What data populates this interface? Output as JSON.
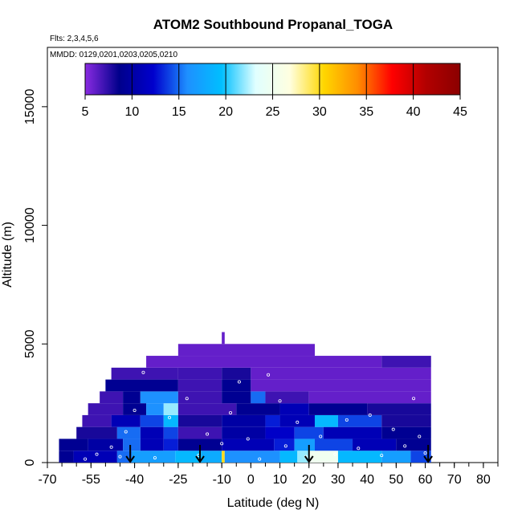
{
  "chart_data": {
    "type": "heatmap",
    "title": "ATOM2 Southbound Propanal_TOGA",
    "subtitle": "Flts: 2,3,4,5,6",
    "annotation": "MMDD: 0129,0201,0203,0205,0210",
    "xlabel": "Latitude (deg N)",
    "ylabel": "Altitude (m)",
    "xlim": [
      -70,
      85
    ],
    "ylim": [
      0,
      17500
    ],
    "x_ticks": [
      -70,
      -55,
      -40,
      -25,
      -10,
      0,
      10,
      20,
      30,
      40,
      50,
      60,
      70,
      80
    ],
    "x_tick_labels": [
      "-70",
      "-55",
      "-40",
      "-25",
      "-10",
      "0",
      "10",
      "20",
      "30",
      "40",
      "50",
      "60",
      "70",
      "80"
    ],
    "y_ticks": [
      0,
      5000,
      10000,
      15000
    ],
    "y_tick_labels": [
      "0",
      "5000",
      "10000",
      "15000"
    ],
    "colorbar": {
      "min": 5,
      "max": 45,
      "ticks": [
        5,
        10,
        15,
        20,
        25,
        30,
        35,
        40,
        45
      ],
      "tick_labels": [
        "5",
        "10",
        "15",
        "20",
        "25",
        "30",
        "35",
        "40",
        "45"
      ],
      "colors": [
        "#8a2be2",
        "#00008b",
        "#0000cd",
        "#1e90ff",
        "#00bfff",
        "#e0ffff",
        "#ffffe0",
        "#ffd700",
        "#ff8c00",
        "#ff0000",
        "#b20000",
        "#8b0000"
      ]
    },
    "profile_arrows_lat": [
      -41.5,
      -17.5,
      20,
      61
    ],
    "cells": [
      {
        "lat": [
          -66,
          -61
        ],
        "alt": [
          0,
          500
        ],
        "value": 9
      },
      {
        "lat": [
          -61,
          -46
        ],
        "alt": [
          0,
          500
        ],
        "value": 11
      },
      {
        "lat": [
          -46,
          -41
        ],
        "alt": [
          0,
          500
        ],
        "value": 15
      },
      {
        "lat": [
          -41,
          -26
        ],
        "alt": [
          0,
          500
        ],
        "value": 17
      },
      {
        "lat": [
          -26,
          -17
        ],
        "alt": [
          0,
          500
        ],
        "value": 19
      },
      {
        "lat": [
          -17,
          -10
        ],
        "alt": [
          0,
          500
        ],
        "value": 18
      },
      {
        "lat": [
          -10,
          -9
        ],
        "alt": [
          0,
          500
        ],
        "value": 30
      },
      {
        "lat": [
          -9,
          10
        ],
        "alt": [
          0,
          500
        ],
        "value": 16
      },
      {
        "lat": [
          10,
          16
        ],
        "alt": [
          0,
          500
        ],
        "value": 19
      },
      {
        "lat": [
          16,
          20
        ],
        "alt": [
          0,
          500
        ],
        "value": 22
      },
      {
        "lat": [
          20,
          30
        ],
        "alt": [
          0,
          500
        ],
        "value": 25
      },
      {
        "lat": [
          30,
          45
        ],
        "alt": [
          0,
          500
        ],
        "value": 19
      },
      {
        "lat": [
          45,
          55
        ],
        "alt": [
          0,
          500
        ],
        "value": 17
      },
      {
        "lat": [
          55,
          62
        ],
        "alt": [
          0,
          500
        ],
        "value": 14
      },
      {
        "lat": [
          -66,
          -56
        ],
        "alt": [
          500,
          1000
        ],
        "value": 9
      },
      {
        "lat": [
          -56,
          -44
        ],
        "alt": [
          500,
          1000
        ],
        "value": 10
      },
      {
        "lat": [
          -44,
          -38
        ],
        "alt": [
          500,
          1000
        ],
        "value": 15
      },
      {
        "lat": [
          -38,
          -30
        ],
        "alt": [
          500,
          1000
        ],
        "value": 11
      },
      {
        "lat": [
          -30,
          -25
        ],
        "alt": [
          500,
          1000
        ],
        "value": 13
      },
      {
        "lat": [
          -25,
          -10
        ],
        "alt": [
          500,
          1000
        ],
        "value": 9
      },
      {
        "lat": [
          -10,
          8
        ],
        "alt": [
          500,
          1000
        ],
        "value": 11
      },
      {
        "lat": [
          8,
          15
        ],
        "alt": [
          500,
          1000
        ],
        "value": 13
      },
      {
        "lat": [
          15,
          22
        ],
        "alt": [
          500,
          1000
        ],
        "value": 17
      },
      {
        "lat": [
          22,
          35
        ],
        "alt": [
          500,
          1000
        ],
        "value": 14
      },
      {
        "lat": [
          35,
          50
        ],
        "alt": [
          500,
          1000
        ],
        "value": 11
      },
      {
        "lat": [
          50,
          62
        ],
        "alt": [
          500,
          1000
        ],
        "value": 9
      },
      {
        "lat": [
          -60,
          -46
        ],
        "alt": [
          1000,
          1500
        ],
        "value": 8
      },
      {
        "lat": [
          -46,
          -38
        ],
        "alt": [
          1000,
          1500
        ],
        "value": 15
      },
      {
        "lat": [
          -38,
          -30
        ],
        "alt": [
          1000,
          1500
        ],
        "value": 11
      },
      {
        "lat": [
          -30,
          -25
        ],
        "alt": [
          1000,
          1500
        ],
        "value": 14
      },
      {
        "lat": [
          -25,
          -10
        ],
        "alt": [
          1000,
          1500
        ],
        "value": 7
      },
      {
        "lat": [
          -10,
          5
        ],
        "alt": [
          1000,
          1500
        ],
        "value": 10
      },
      {
        "lat": [
          5,
          15
        ],
        "alt": [
          1000,
          1500
        ],
        "value": 12
      },
      {
        "lat": [
          15,
          25
        ],
        "alt": [
          1000,
          1500
        ],
        "value": 14
      },
      {
        "lat": [
          25,
          45
        ],
        "alt": [
          1000,
          1500
        ],
        "value": 11
      },
      {
        "lat": [
          45,
          62
        ],
        "alt": [
          1000,
          1500
        ],
        "value": 9
      },
      {
        "lat": [
          -58,
          -48
        ],
        "alt": [
          1500,
          2000
        ],
        "value": 7
      },
      {
        "lat": [
          -48,
          -38
        ],
        "alt": [
          1500,
          2000
        ],
        "value": 11
      },
      {
        "lat": [
          -38,
          -30
        ],
        "alt": [
          1500,
          2000
        ],
        "value": 14
      },
      {
        "lat": [
          -30,
          -25
        ],
        "alt": [
          1500,
          2000
        ],
        "value": 19
      },
      {
        "lat": [
          -25,
          -10
        ],
        "alt": [
          1500,
          2000
        ],
        "value": 8
      },
      {
        "lat": [
          -10,
          5
        ],
        "alt": [
          1500,
          2000
        ],
        "value": 10
      },
      {
        "lat": [
          5,
          10
        ],
        "alt": [
          1500,
          2000
        ],
        "value": 13
      },
      {
        "lat": [
          10,
          22
        ],
        "alt": [
          1500,
          2000
        ],
        "value": 11
      },
      {
        "lat": [
          22,
          30
        ],
        "alt": [
          1500,
          2000
        ],
        "value": 19
      },
      {
        "lat": [
          30,
          45
        ],
        "alt": [
          1500,
          2000
        ],
        "value": 14
      },
      {
        "lat": [
          45,
          62
        ],
        "alt": [
          1500,
          2000
        ],
        "value": 8
      },
      {
        "lat": [
          -56,
          -44
        ],
        "alt": [
          2000,
          2500
        ],
        "value": 7
      },
      {
        "lat": [
          -44,
          -36
        ],
        "alt": [
          2000,
          2500
        ],
        "value": 9
      },
      {
        "lat": [
          -36,
          -30
        ],
        "alt": [
          2000,
          2500
        ],
        "value": 16
      },
      {
        "lat": [
          -30,
          -25
        ],
        "alt": [
          2000,
          2500
        ],
        "value": 22
      },
      {
        "lat": [
          -25,
          -5
        ],
        "alt": [
          2000,
          2500
        ],
        "value": 7
      },
      {
        "lat": [
          -5,
          10
        ],
        "alt": [
          2000,
          2500
        ],
        "value": 9
      },
      {
        "lat": [
          10,
          20
        ],
        "alt": [
          2000,
          2500
        ],
        "value": 11
      },
      {
        "lat": [
          20,
          40
        ],
        "alt": [
          2000,
          2500
        ],
        "value": 9
      },
      {
        "lat": [
          40,
          62
        ],
        "alt": [
          2000,
          2500
        ],
        "value": 8
      },
      {
        "lat": [
          -52,
          -44
        ],
        "alt": [
          2500,
          3000
        ],
        "value": 7
      },
      {
        "lat": [
          -44,
          -38
        ],
        "alt": [
          2500,
          3000
        ],
        "value": 9
      },
      {
        "lat": [
          -38,
          -25
        ],
        "alt": [
          2500,
          3000
        ],
        "value": 16
      },
      {
        "lat": [
          -25,
          -10
        ],
        "alt": [
          2500,
          3000
        ],
        "value": 7
      },
      {
        "lat": [
          -10,
          0
        ],
        "alt": [
          2500,
          3000
        ],
        "value": 9
      },
      {
        "lat": [
          0,
          5
        ],
        "alt": [
          2500,
          3000
        ],
        "value": 15
      },
      {
        "lat": [
          5,
          20
        ],
        "alt": [
          2500,
          3000
        ],
        "value": 7
      },
      {
        "lat": [
          20,
          62
        ],
        "alt": [
          2500,
          3000
        ],
        "value": 6
      },
      {
        "lat": [
          -50,
          -25
        ],
        "alt": [
          3000,
          3500
        ],
        "value": 9
      },
      {
        "lat": [
          -25,
          -10
        ],
        "alt": [
          3000,
          3500
        ],
        "value": 7
      },
      {
        "lat": [
          -10,
          0
        ],
        "alt": [
          3000,
          3500
        ],
        "value": 9
      },
      {
        "lat": [
          0,
          62
        ],
        "alt": [
          3000,
          3500
        ],
        "value": 6
      },
      {
        "lat": [
          -48,
          -25
        ],
        "alt": [
          3500,
          4000
        ],
        "value": 7
      },
      {
        "lat": [
          -25,
          -10
        ],
        "alt": [
          3500,
          4000
        ],
        "value": 7
      },
      {
        "lat": [
          -10,
          0
        ],
        "alt": [
          3500,
          4000
        ],
        "value": 8
      },
      {
        "lat": [
          0,
          62
        ],
        "alt": [
          3500,
          4000
        ],
        "value": 6
      },
      {
        "lat": [
          -36,
          45
        ],
        "alt": [
          4000,
          4500
        ],
        "value": 6
      },
      {
        "lat": [
          45,
          62
        ],
        "alt": [
          4000,
          4500
        ],
        "value": 7
      },
      {
        "lat": [
          -25,
          22
        ],
        "alt": [
          4500,
          5000
        ],
        "value": 6
      },
      {
        "lat": [
          -10,
          -9
        ],
        "alt": [
          5000,
          5500
        ],
        "value": 6
      }
    ],
    "sample_points": [
      {
        "lat": -57,
        "alt": 150
      },
      {
        "lat": -53,
        "alt": 350
      },
      {
        "lat": -48,
        "alt": 650
      },
      {
        "lat": -45,
        "alt": 250
      },
      {
        "lat": -43,
        "alt": 1300
      },
      {
        "lat": -40,
        "alt": 2200
      },
      {
        "lat": -37,
        "alt": 3800
      },
      {
        "lat": -33,
        "alt": 200
      },
      {
        "lat": -28,
        "alt": 1900
      },
      {
        "lat": -22,
        "alt": 2700
      },
      {
        "lat": -18,
        "alt": 300
      },
      {
        "lat": -15,
        "alt": 1200
      },
      {
        "lat": -10,
        "alt": 800
      },
      {
        "lat": -7,
        "alt": 2100
      },
      {
        "lat": -4,
        "alt": 3400
      },
      {
        "lat": -1,
        "alt": 1000
      },
      {
        "lat": 3,
        "alt": 150
      },
      {
        "lat": 6,
        "alt": 3700
      },
      {
        "lat": 10,
        "alt": 2600
      },
      {
        "lat": 12,
        "alt": 700
      },
      {
        "lat": 16,
        "alt": 1700
      },
      {
        "lat": 19,
        "alt": 250
      },
      {
        "lat": 24,
        "alt": 1100
      },
      {
        "lat": 29,
        "alt": 350
      },
      {
        "lat": 33,
        "alt": 1800
      },
      {
        "lat": 37,
        "alt": 600
      },
      {
        "lat": 41,
        "alt": 2000
      },
      {
        "lat": 45,
        "alt": 300
      },
      {
        "lat": 49,
        "alt": 1400
      },
      {
        "lat": 53,
        "alt": 700
      },
      {
        "lat": 56,
        "alt": 2700
      },
      {
        "lat": 58,
        "alt": 1100
      },
      {
        "lat": 60,
        "alt": 400
      }
    ]
  }
}
